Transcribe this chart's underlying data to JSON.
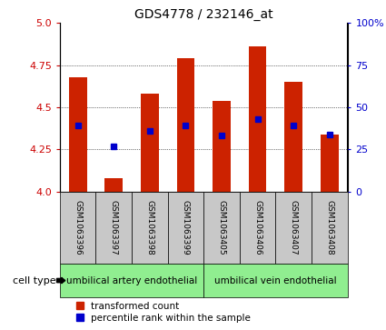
{
  "title": "GDS4778 / 232146_at",
  "samples": [
    "GSM1063396",
    "GSM1063397",
    "GSM1063398",
    "GSM1063399",
    "GSM1063405",
    "GSM1063406",
    "GSM1063407",
    "GSM1063408"
  ],
  "bar_values": [
    4.68,
    4.08,
    4.58,
    4.79,
    4.54,
    4.86,
    4.65,
    4.34
  ],
  "blue_dot_values": [
    4.39,
    4.27,
    4.36,
    4.39,
    4.33,
    4.43,
    4.39,
    4.34
  ],
  "ylim": [
    4.0,
    5.0
  ],
  "yticks_left": [
    4.0,
    4.25,
    4.5,
    4.75,
    5.0
  ],
  "yticks_right": [
    0,
    25,
    50,
    75,
    100
  ],
  "cell_type_groups": [
    {
      "label": "umbilical artery endothelial",
      "start": 0,
      "end": 3,
      "color": "#90EE90"
    },
    {
      "label": "umbilical vein endothelial",
      "start": 4,
      "end": 7,
      "color": "#90EE90"
    }
  ],
  "bar_color": "#CC2200",
  "dot_color": "#0000CC",
  "bar_base": 4.0,
  "left_axis_color": "#CC0000",
  "right_axis_color": "#0000CC",
  "grid_color": "#000000",
  "bg_color": "#FFFFFF",
  "label_bg_color": "#C8C8C8",
  "legend_red_label": "transformed count",
  "legend_blue_label": "percentile rank within the sample",
  "cell_type_label": "cell type"
}
